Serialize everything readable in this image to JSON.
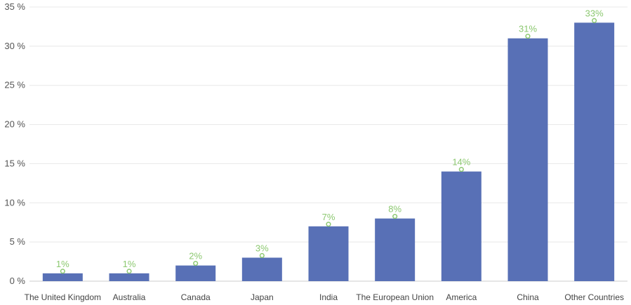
{
  "chart_data": {
    "type": "bar",
    "title": "",
    "xlabel": "",
    "ylabel": "",
    "categories": [
      "The United Kingdom",
      "Australia",
      "Canada",
      "Japan",
      "India",
      "The European Union",
      "America",
      "China",
      "Other Countries"
    ],
    "values": [
      1,
      1,
      2,
      3,
      7,
      8,
      14,
      31,
      33
    ],
    "data_labels": [
      "1%",
      "1%",
      "2%",
      "3%",
      "7%",
      "8%",
      "14%",
      "31%",
      "33%"
    ],
    "ylim": [
      0,
      35
    ],
    "yticks": [
      0,
      5,
      10,
      15,
      20,
      25,
      30,
      35
    ],
    "ytick_labels": [
      "0 %",
      "5 %",
      "10 %",
      "15 %",
      "20 %",
      "25 %",
      "30 %",
      "35 %"
    ],
    "grid": true,
    "legend": "none",
    "colors": {
      "bar": "#5870b6",
      "data_label": "#8cc870",
      "grid": "#e8e8e8",
      "axis": "#cccccc"
    }
  }
}
